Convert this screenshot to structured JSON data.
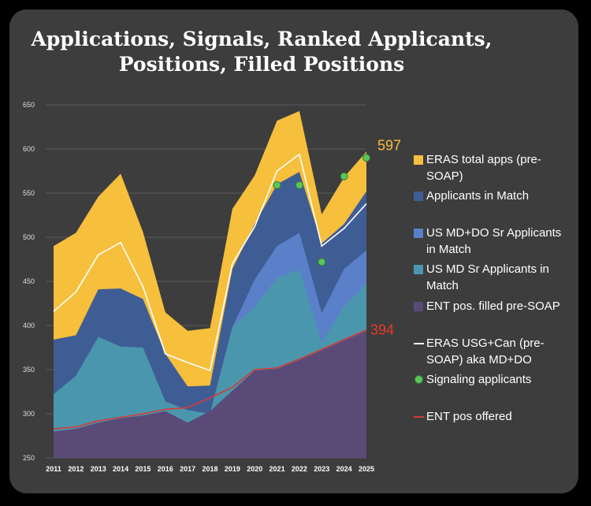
{
  "title_line1": "Applications, Signals, Ranked Applicants,",
  "title_line2": "Positions, Filled Positions",
  "chart_data": {
    "type": "area",
    "title": "Applications, Signals, Ranked Applicants, Positions, Filled Positions",
    "ylim": [
      250,
      650
    ],
    "y_ticks": [
      "250",
      "300",
      "350",
      "400",
      "450",
      "500",
      "550",
      "600",
      "650"
    ],
    "categories": [
      "2011",
      "2012",
      "2013",
      "2014",
      "2015",
      "2016",
      "2017",
      "2018",
      "2019",
      "2020",
      "2021",
      "2022",
      "2023",
      "2024",
      "2025"
    ],
    "grid": true,
    "series": [
      {
        "name": "ERAS total apps (pre-SOAP)",
        "kind": "area",
        "color": "#f6bf3c",
        "values": [
          490,
          505,
          546,
          572,
          506,
          415,
          394,
          397,
          532,
          570,
          632,
          643,
          526,
          568,
          597
        ]
      },
      {
        "name": "Applicants in Match",
        "kind": "area",
        "color": "#3f5d95",
        "values": [
          384,
          389,
          441,
          442,
          430,
          368,
          331,
          332,
          464,
          515,
          560,
          574,
          493,
          515,
          552
        ]
      },
      {
        "name": "US MD+DO Sr Applicants in Match",
        "kind": "area",
        "color": "#5b80ca",
        "values": [
          322,
          343,
          387,
          376,
          375,
          314,
          304,
          300,
          398,
          452,
          490,
          505,
          414,
          464,
          485
        ]
      },
      {
        "name": "US MD Sr Applicants in Match",
        "kind": "area",
        "color": "#4a97ad",
        "values": [
          322,
          343,
          387,
          376,
          375,
          314,
          304,
          300,
          398,
          421,
          454,
          463,
          380,
          422,
          447
        ]
      },
      {
        "name": "ENT pos. filled pre-SOAP",
        "kind": "area",
        "color": "#5a4a78",
        "values": [
          280,
          283,
          290,
          295,
          298,
          303,
          290,
          303,
          326,
          349,
          351,
          361,
          372,
          383,
          394
        ]
      },
      {
        "name": "ERAS USG+Can (pre-SOAP) aka MD+DO",
        "kind": "line",
        "color": "#ffffff",
        "values": [
          416,
          438,
          480,
          494,
          444,
          368,
          358,
          349,
          470,
          512,
          575,
          594,
          490,
          510,
          538
        ]
      },
      {
        "name": "Signaling applicants",
        "kind": "points",
        "color": "#5cc45c",
        "values": [
          null,
          null,
          null,
          null,
          null,
          null,
          null,
          null,
          null,
          null,
          559,
          559,
          472,
          569,
          590
        ]
      },
      {
        "name": "ENT pos offered",
        "kind": "line",
        "color": "#d43a36",
        "values": [
          283,
          285,
          292,
          296,
          300,
          305,
          307,
          318,
          330,
          350,
          352,
          362,
          373,
          384,
          395
        ]
      }
    ],
    "annotations": [
      {
        "text": "597",
        "color": "#f6bf3c"
      },
      {
        "text": "394",
        "color": "#e8382e"
      }
    ]
  }
}
